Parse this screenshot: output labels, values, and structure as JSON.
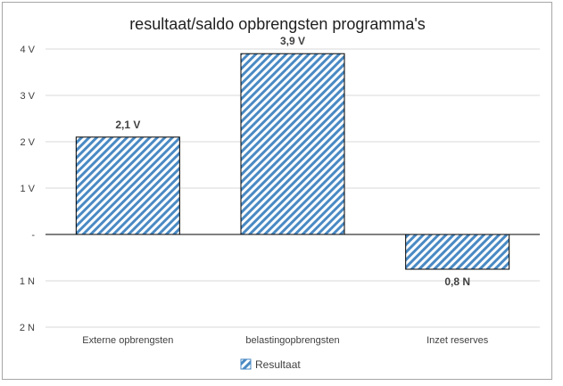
{
  "chart_data": {
    "type": "bar",
    "title": "resultaat/saldo opbrengsten programma's",
    "categories": [
      "Externe opbrengsten",
      "belastingopbrengsten",
      "Inzet reserves"
    ],
    "series": [
      {
        "name": "Resultaat",
        "values": [
          2.1,
          3.9,
          -0.75
        ],
        "data_labels": [
          "2,1 V",
          "3,9 V",
          "0,8 N"
        ]
      }
    ],
    "ylim": [
      -2,
      4
    ],
    "y_ticks": [
      {
        "value": 4,
        "label": "4 V"
      },
      {
        "value": 3,
        "label": "3 V"
      },
      {
        "value": 2,
        "label": "2 V"
      },
      {
        "value": 1,
        "label": "1 V"
      },
      {
        "value": 0,
        "label": "-"
      },
      {
        "value": -1,
        "label": "1 N"
      },
      {
        "value": -2,
        "label": "2 N"
      }
    ],
    "grid": true,
    "legend": "bottom",
    "colors": {
      "bar": "#4a8ac4",
      "grid": "#d9d9d9",
      "axis": "#000000"
    }
  }
}
